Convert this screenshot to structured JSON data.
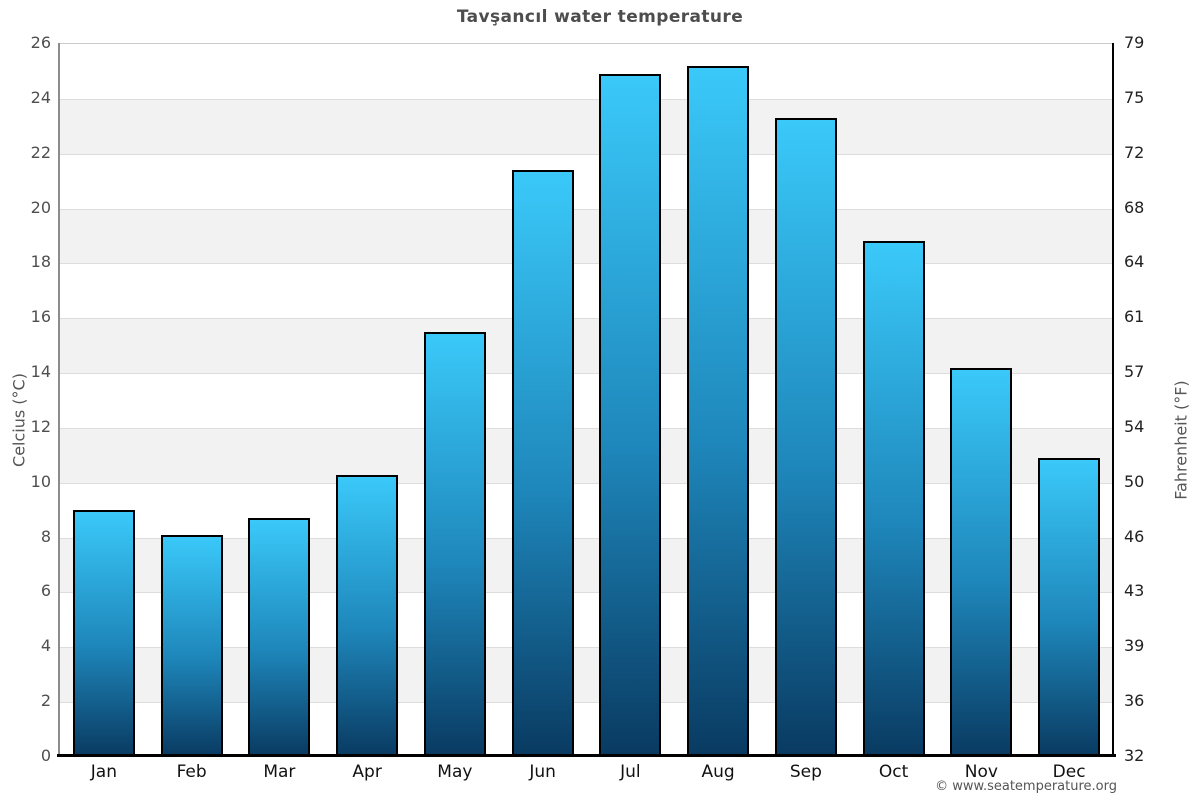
{
  "chart_data": {
    "type": "bar",
    "title": "Tavşancıl water temperature",
    "categories": [
      "Jan",
      "Feb",
      "Mar",
      "Apr",
      "May",
      "Jun",
      "Jul",
      "Aug",
      "Sep",
      "Oct",
      "Nov",
      "Dec"
    ],
    "values": [
      9.0,
      8.1,
      8.7,
      10.3,
      15.5,
      21.4,
      24.9,
      25.2,
      23.3,
      18.8,
      14.2,
      10.9
    ],
    "ylabel_left": "Celcius (°C)",
    "ylabel_right": "Fahrenheit (°F)",
    "ylim": [
      0,
      26
    ],
    "ytick_step": 2,
    "yticks_celsius": [
      "0",
      "2",
      "4",
      "6",
      "8",
      "10",
      "12",
      "14",
      "16",
      "18",
      "20",
      "22",
      "24",
      "26"
    ],
    "yticks_fahrenheit": [
      "32",
      "36",
      "39",
      "43",
      "46",
      "50",
      "54",
      "57",
      "61",
      "64",
      "68",
      "72",
      "75",
      "79"
    ],
    "grid": "horizontal-gridlines-with-alternating-bands",
    "legend": "none",
    "colors": {
      "bar_gradient_top": "#3ac9f9",
      "bar_gradient_mid": "#1e86ba",
      "bar_gradient_bottom": "#093a61",
      "bar_border": "#000000",
      "band_gray": "#f2f2f2",
      "gridline": "#dddddd",
      "title_text": "#4d4d4d"
    },
    "footer": "© www.seatemperature.org"
  }
}
